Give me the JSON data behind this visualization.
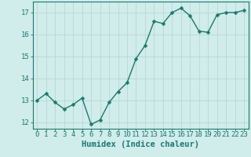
{
  "x": [
    0,
    1,
    2,
    3,
    4,
    5,
    6,
    7,
    8,
    9,
    10,
    11,
    12,
    13,
    14,
    15,
    16,
    17,
    18,
    19,
    20,
    21,
    22,
    23
  ],
  "y": [
    13.0,
    13.3,
    12.9,
    12.6,
    12.8,
    13.1,
    11.9,
    12.1,
    12.9,
    13.4,
    13.8,
    14.9,
    15.5,
    16.6,
    16.5,
    17.0,
    17.2,
    16.85,
    16.15,
    16.1,
    16.9,
    17.0,
    17.0,
    17.1
  ],
  "line_color": "#1a7a6e",
  "marker_color": "#1a7a6e",
  "bg_color": "#d0eceb",
  "grid_color": "#b8d8d5",
  "xlabel": "Humidex (Indice chaleur)",
  "xlim": [
    -0.5,
    23.5
  ],
  "ylim": [
    11.7,
    17.5
  ],
  "yticks": [
    12,
    13,
    14,
    15,
    16,
    17
  ],
  "xticks": [
    0,
    1,
    2,
    3,
    4,
    5,
    6,
    7,
    8,
    9,
    10,
    11,
    12,
    13,
    14,
    15,
    16,
    17,
    18,
    19,
    20,
    21,
    22,
    23
  ],
  "tick_fontsize": 6.5,
  "xlabel_fontsize": 7.5,
  "marker_size": 2.5,
  "line_width": 1.0
}
